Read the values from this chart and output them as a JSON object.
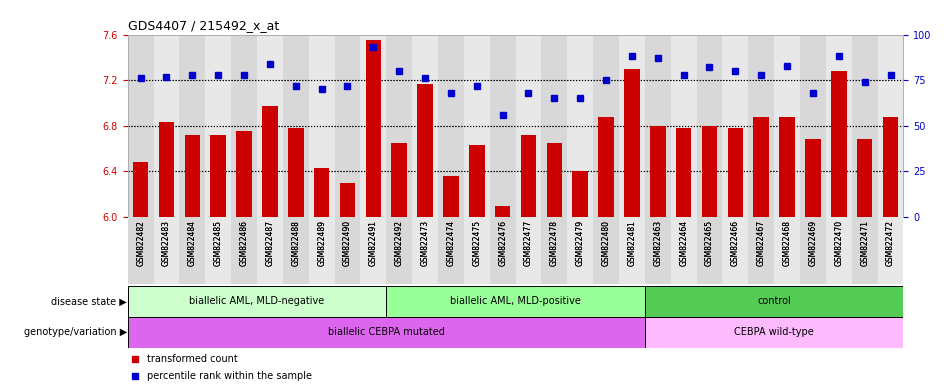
{
  "title": "GDS4407 / 215492_x_at",
  "samples": [
    "GSM822482",
    "GSM822483",
    "GSM822484",
    "GSM822485",
    "GSM822486",
    "GSM822487",
    "GSM822488",
    "GSM822489",
    "GSM822490",
    "GSM822491",
    "GSM822492",
    "GSM822473",
    "GSM822474",
    "GSM822475",
    "GSM822476",
    "GSM822477",
    "GSM822478",
    "GSM822479",
    "GSM822480",
    "GSM822481",
    "GSM822463",
    "GSM822464",
    "GSM822465",
    "GSM822466",
    "GSM822467",
    "GSM822468",
    "GSM822469",
    "GSM822470",
    "GSM822471",
    "GSM822472"
  ],
  "bar_values": [
    6.48,
    6.83,
    6.72,
    6.72,
    6.75,
    6.97,
    6.78,
    6.43,
    6.3,
    7.55,
    6.65,
    7.17,
    6.36,
    6.63,
    6.1,
    6.72,
    6.65,
    6.4,
    6.88,
    7.3,
    6.8,
    6.78,
    6.8,
    6.78,
    6.88,
    6.88,
    6.68,
    7.28,
    6.68,
    6.88
  ],
  "percentile_values": [
    76,
    77,
    78,
    78,
    78,
    84,
    72,
    70,
    72,
    93,
    80,
    76,
    68,
    72,
    56,
    68,
    65,
    65,
    75,
    88,
    87,
    78,
    82,
    80,
    78,
    83,
    68,
    88,
    74,
    78
  ],
  "ylim_left": [
    6.0,
    7.6
  ],
  "ylim_right": [
    0,
    100
  ],
  "yticks_left": [
    6.0,
    6.4,
    6.8,
    7.2,
    7.6
  ],
  "yticks_right": [
    0,
    25,
    50,
    75,
    100
  ],
  "bar_color": "#cc0000",
  "dot_color": "#0000cc",
  "gridline_color": "#000000",
  "gridlines_at": [
    6.4,
    6.8,
    7.2
  ],
  "disease_groups": [
    {
      "label": "biallelic AML, MLD-negative",
      "start": 0,
      "end": 10,
      "color": "#ccffcc"
    },
    {
      "label": "biallelic AML, MLD-positive",
      "start": 10,
      "end": 20,
      "color": "#99ff99"
    },
    {
      "label": "control",
      "start": 20,
      "end": 30,
      "color": "#55cc55"
    }
  ],
  "geno_groups": [
    {
      "label": "biallelic CEBPA mutated",
      "start": 0,
      "end": 20,
      "color": "#dd66ee"
    },
    {
      "label": "CEBPA wild-type",
      "start": 20,
      "end": 30,
      "color": "#ffbbff"
    }
  ],
  "disease_label": "disease state",
  "geno_label": "genotype/variation",
  "legend": [
    "transformed count",
    "percentile rank within the sample"
  ],
  "axis_color_left": "#cc0000",
  "axis_color_right": "#0000cc"
}
